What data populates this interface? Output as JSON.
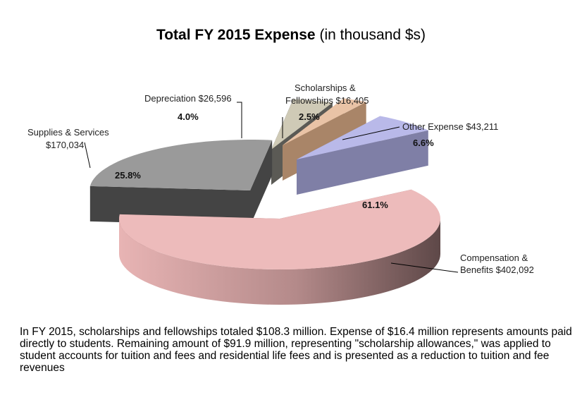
{
  "title": {
    "main": "Total FY 2015 Expense",
    "suffix": "(in thousand $s)"
  },
  "chart_data": {
    "type": "pie",
    "slices": [
      {
        "label_line1": "Compensation &",
        "label_line2": "Benefits $402,092",
        "value": 402092,
        "percent": "61.1%",
        "color": "#EDBBBB"
      },
      {
        "label_line1": "Supplies & Services",
        "label_line2": "$170,034",
        "value": 170034,
        "percent": "25.8%",
        "color": "#9A9A9A"
      },
      {
        "label_line1": "Depreciation $26,596",
        "label_line2": "",
        "value": 26596,
        "percent": "4.0%",
        "color": "#CFCAB6"
      },
      {
        "label_line1": "Scholarships &",
        "label_line2": "Fellowships $16,405",
        "value": 16405,
        "percent": "2.5%",
        "color": "#E9C3A6"
      },
      {
        "label_line1": "Other Expense $43,211",
        "label_line2": "",
        "value": 43211,
        "percent": "6.6%",
        "color": "#B9B9E9"
      }
    ]
  },
  "note": "In FY 2015, scholarships and fellowships totaled $108.3 million. Expense of $16.4 million represents amounts paid directly to students. Remaining amount of $91.9 million, representing \"scholarship allowances,\" was applied to student accounts for tuition and fees and residential life fees and is presented as a reduction to tuition and fee revenues"
}
